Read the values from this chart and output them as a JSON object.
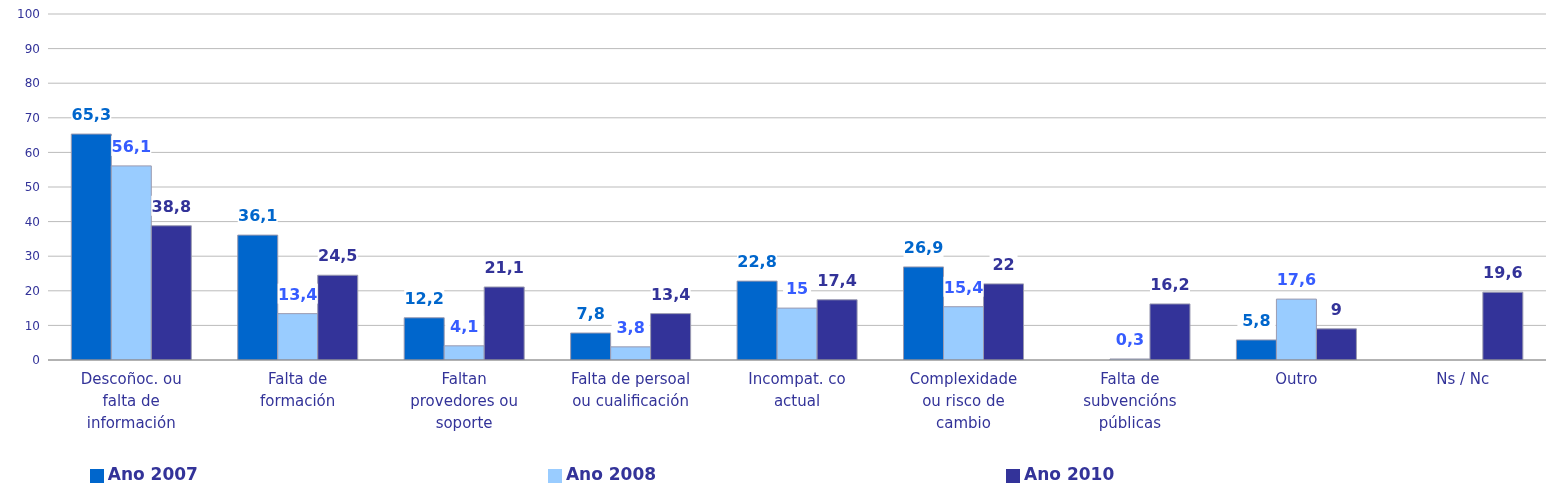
{
  "chart_data": {
    "type": "bar",
    "categories": [
      "Descoñoc. ou\nfalta de\ninformación",
      "Falta de\nformación",
      "Faltan\nprovedores ou\nsoporte",
      "Falta de persoal\nou cualificación",
      "Incompat. co\nactual",
      "Complexidade\nou risco de\ncambio",
      "Falta de\nsubvencións\npúblicas",
      "Outro",
      "Ns / Nc"
    ],
    "series": [
      {
        "name": "Ano 2007",
        "color": "#0066cc",
        "values": [
          65.3,
          36.1,
          12.2,
          7.8,
          22.8,
          26.9,
          null,
          5.8,
          null
        ],
        "value_labels": [
          "65,3",
          "36,1",
          "12,2",
          "7,8",
          "22,8",
          "26,9",
          null,
          "5,8",
          null
        ]
      },
      {
        "name": "Ano 2008",
        "color": "#99ccff",
        "values": [
          56.1,
          13.4,
          4.1,
          3.8,
          15,
          15.4,
          0.3,
          17.6,
          null
        ],
        "value_labels": [
          "56,1",
          "13,4",
          "4,1",
          "3,8",
          "15",
          "15,4",
          "0,3",
          "17,6",
          null
        ]
      },
      {
        "name": "Ano 2010",
        "color": "#333399",
        "values": [
          38.8,
          24.5,
          21.1,
          13.4,
          17.4,
          22,
          16.2,
          9,
          19.6
        ],
        "value_labels": [
          "38,8",
          "24,5",
          "21,1",
          "13,4",
          "17,4",
          "22",
          "16,2",
          "9",
          "19,6"
        ]
      }
    ],
    "ylim": [
      0,
      100
    ],
    "yticks": [
      0,
      10,
      20,
      30,
      40,
      50,
      60,
      70,
      80,
      90,
      100
    ],
    "grid": "y",
    "legend": "bottom"
  }
}
